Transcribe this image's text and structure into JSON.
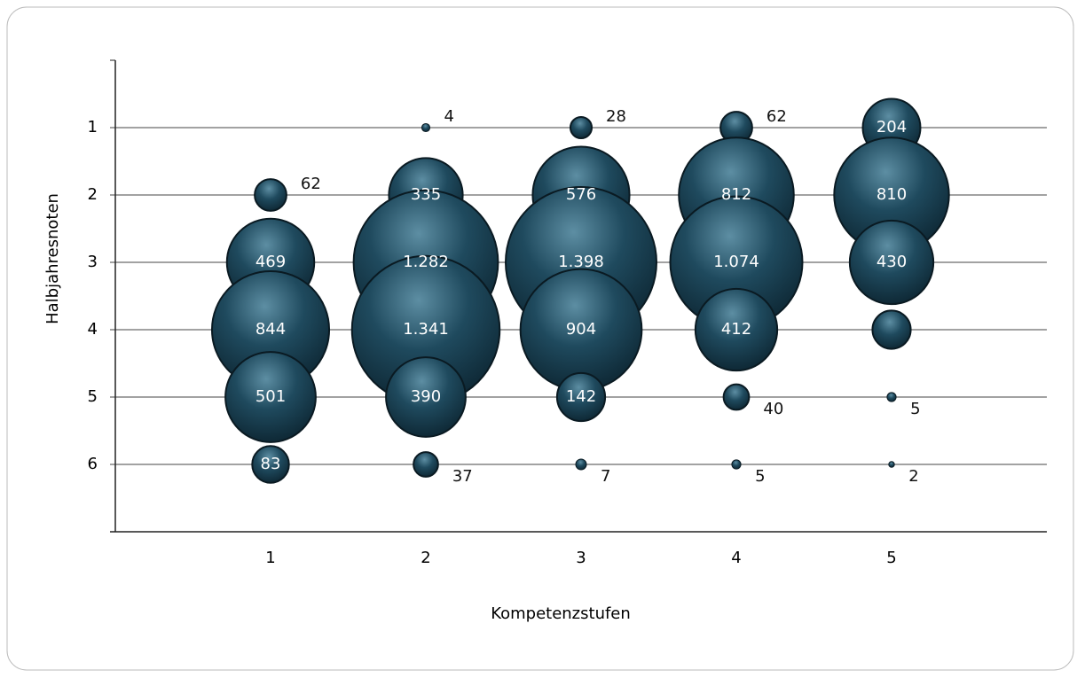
{
  "chart_data": {
    "type": "bubble",
    "x_label": "Kompetenzstufen",
    "y_label": "Halbjahresnoten",
    "xlim": [
      0,
      6
    ],
    "xticks": [
      1,
      2,
      3,
      4,
      5
    ],
    "ylim": [
      7,
      0
    ],
    "yticks": [
      1,
      2,
      3,
      4,
      5,
      6
    ],
    "y_reversed": true,
    "grid": true,
    "color": "#1f4a5e",
    "x": [
      1,
      1,
      1,
      1,
      1,
      2,
      2,
      2,
      2,
      2,
      2,
      3,
      3,
      3,
      3,
      3,
      3,
      4,
      4,
      4,
      4,
      4,
      4,
      5,
      5,
      5,
      5,
      5,
      5
    ],
    "y": [
      2,
      3,
      4,
      5,
      6,
      1,
      2,
      3,
      4,
      5,
      6,
      1,
      2,
      3,
      4,
      5,
      6,
      1,
      2,
      3,
      4,
      5,
      6,
      1,
      2,
      3,
      4,
      5,
      6
    ],
    "sizes": [
      62,
      469,
      844,
      501,
      83,
      4,
      335,
      1282,
      1341,
      390,
      37,
      28,
      576,
      1398,
      904,
      142,
      7,
      62,
      812,
      1074,
      412,
      40,
      5,
      204,
      810,
      430,
      90,
      5,
      2
    ],
    "value_labels": [
      "62",
      "469",
      "844",
      "501",
      "83",
      "4",
      "335",
      "1.282",
      "1.341",
      "390",
      "37",
      "28",
      "576",
      "1.398",
      "904",
      "142",
      "7",
      "62",
      "812",
      "1.074",
      "412",
      "40",
      "5",
      "204",
      "810",
      "430",
      null,
      "5",
      "2"
    ]
  }
}
